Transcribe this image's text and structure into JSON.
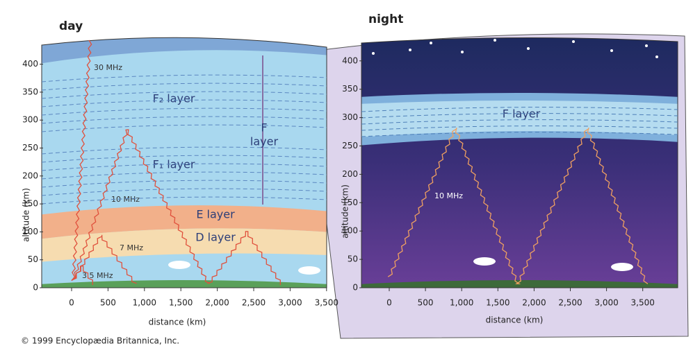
{
  "day": {
    "title": "day",
    "y_axis_label": "altitude (km)",
    "x_axis_label": "distance (km)",
    "yticks": [
      "0",
      "50",
      "100",
      "150",
      "200",
      "250",
      "300",
      "350",
      "400"
    ],
    "xticks": [
      "0",
      "500",
      "1,000",
      "1,500",
      "2,000",
      "2,500",
      "3,000",
      "3,500"
    ],
    "layers": {
      "f2": "F₂ layer",
      "f1": "F₁ layer",
      "f": [
        "F",
        "layer"
      ],
      "e": "E layer",
      "d": "D layer"
    },
    "frequencies": [
      "30 MHz",
      "10 MHz",
      "7 MHz",
      "3.5 MHz"
    ]
  },
  "night": {
    "title": "night",
    "y_axis_label": "altitude (km)",
    "x_axis_label": "distance (km)",
    "yticks": [
      "0",
      "50",
      "100",
      "150",
      "200",
      "250",
      "300",
      "350",
      "400"
    ],
    "xticks": [
      "0",
      "500",
      "1,000",
      "1,500",
      "2,000",
      "2,500",
      "3,000",
      "3,500"
    ],
    "layer": "F layer",
    "frequency": "10 MHz"
  },
  "copyright": "© 1999 Encyclopædia Britannica, Inc."
}
